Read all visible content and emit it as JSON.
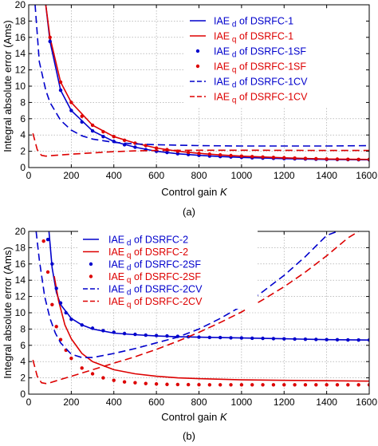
{
  "chart_data": [
    {
      "type": "line",
      "caption": "(a)",
      "xlabel": "Control gain K",
      "ylabel": "Integral absolute error (Ams)",
      "xlim": [
        0,
        1600
      ],
      "ylim": [
        0,
        20
      ],
      "xticks": [
        0,
        200,
        400,
        600,
        800,
        1000,
        1200,
        1400,
        1600
      ],
      "yticks": [
        0,
        2,
        4,
        6,
        8,
        10,
        12,
        14,
        16,
        18,
        20
      ],
      "grid": true,
      "legend_position": "top-right",
      "series": [
        {
          "name": "IAE_d of DSRFC-1",
          "label_main": "IAE",
          "label_sub": "d",
          "label_rest": " of DSRFC-1",
          "color": "#0000cc",
          "style": "solid",
          "x": [
            80,
            100,
            150,
            200,
            300,
            400,
            500,
            600,
            700,
            800,
            900,
            1000,
            1200,
            1400,
            1600
          ],
          "y": [
            20,
            15.5,
            9.5,
            7.0,
            4.5,
            3.2,
            2.5,
            2.0,
            1.7,
            1.5,
            1.35,
            1.25,
            1.1,
            1.0,
            0.95
          ]
        },
        {
          "name": "IAE_q of DSRFC-1",
          "label_main": "IAE",
          "label_sub": "q",
          "label_rest": " of DSRFC-1",
          "color": "#dd0000",
          "style": "solid",
          "x": [
            80,
            100,
            150,
            200,
            300,
            400,
            500,
            600,
            700,
            800,
            900,
            1000,
            1200,
            1400,
            1600
          ],
          "y": [
            20,
            16.0,
            10.5,
            8.0,
            5.2,
            3.8,
            3.0,
            2.4,
            2.0,
            1.75,
            1.55,
            1.4,
            1.2,
            1.05,
            1.0
          ]
        },
        {
          "name": "IAE_d of DSRFC-1SF",
          "label_main": "IAE",
          "label_sub": "d",
          "label_rest": " of DSRFC-1SF",
          "color": "#0000cc",
          "style": "dots",
          "x": [
            100,
            150,
            200,
            250,
            300,
            350,
            400,
            450,
            500,
            550,
            600,
            650,
            700,
            750,
            800,
            850,
            900,
            950,
            1000,
            1050,
            1100,
            1150,
            1200,
            1250,
            1300,
            1350,
            1400,
            1450,
            1500,
            1550,
            1600
          ],
          "y": [
            15.5,
            9.5,
            7.0,
            5.6,
            4.5,
            3.8,
            3.2,
            2.8,
            2.5,
            2.2,
            2.0,
            1.85,
            1.7,
            1.6,
            1.5,
            1.42,
            1.35,
            1.3,
            1.25,
            1.2,
            1.16,
            1.13,
            1.1,
            1.07,
            1.05,
            1.02,
            1.0,
            0.98,
            0.97,
            0.96,
            0.95
          ]
        },
        {
          "name": "IAE_q of DSRFC-1SF",
          "label_main": "IAE",
          "label_sub": "q",
          "label_rest": " of DSRFC-1SF",
          "color": "#dd0000",
          "style": "dots",
          "x": [
            100,
            150,
            200,
            250,
            300,
            350,
            400,
            450,
            500,
            550,
            600,
            650,
            700,
            750,
            800,
            850,
            900,
            950,
            1000,
            1050,
            1100,
            1150,
            1200,
            1250,
            1300,
            1350,
            1400,
            1450,
            1500,
            1550,
            1600
          ],
          "y": [
            16.0,
            10.5,
            8.0,
            6.3,
            5.2,
            4.4,
            3.8,
            3.35,
            3.0,
            2.7,
            2.4,
            2.2,
            2.0,
            1.87,
            1.75,
            1.65,
            1.55,
            1.47,
            1.4,
            1.34,
            1.29,
            1.24,
            1.2,
            1.16,
            1.12,
            1.08,
            1.05,
            1.03,
            1.01,
            1.0,
            1.0
          ]
        },
        {
          "name": "IAE_d of DSRFC-1CV",
          "label_main": "IAE",
          "label_sub": "d",
          "label_rest": " of DSRFC-1CV",
          "color": "#0000cc",
          "style": "dashed",
          "x": [
            30,
            50,
            80,
            100,
            150,
            200,
            250,
            300,
            400,
            500,
            600,
            800,
            1000,
            1200,
            1400,
            1600
          ],
          "y": [
            20,
            13.0,
            9.5,
            8.0,
            5.8,
            4.6,
            3.9,
            3.5,
            3.1,
            2.9,
            2.8,
            2.7,
            2.65,
            2.65,
            2.65,
            2.7
          ]
        },
        {
          "name": "IAE_q of DSRFC-1CV",
          "label_main": "IAE",
          "label_sub": "q",
          "label_rest": " of DSRFC-1CV",
          "color": "#dd0000",
          "style": "dashed",
          "x": [
            20,
            40,
            60,
            80,
            100,
            150,
            200,
            300,
            400,
            500,
            600,
            700,
            800,
            1000,
            1200,
            1400,
            1600
          ],
          "y": [
            4.2,
            2.2,
            1.5,
            1.4,
            1.45,
            1.55,
            1.65,
            1.8,
            1.95,
            2.05,
            2.1,
            2.12,
            2.13,
            2.13,
            2.12,
            2.1,
            2.1
          ]
        }
      ]
    },
    {
      "type": "line",
      "caption": "(b)",
      "xlabel": "Control gain K",
      "ylabel": "Integral absolute error (Ams)",
      "xlim": [
        0,
        1600
      ],
      "ylim": [
        0,
        20
      ],
      "xticks": [
        0,
        200,
        400,
        600,
        800,
        1000,
        1200,
        1400,
        1600
      ],
      "yticks": [
        0,
        2,
        4,
        6,
        8,
        10,
        12,
        14,
        16,
        18,
        20
      ],
      "grid": true,
      "legend_position": "top-left",
      "series": [
        {
          "name": "IAE_d of DSRFC-2",
          "label_main": "IAE",
          "label_sub": "d",
          "label_rest": " of DSRFC-2",
          "color": "#0000cc",
          "style": "solid",
          "x": [
            95,
            110,
            130,
            150,
            200,
            250,
            300,
            400,
            500,
            600,
            700,
            800,
            1000,
            1200,
            1400,
            1600
          ],
          "y": [
            20,
            15.5,
            12.5,
            11.0,
            9.3,
            8.5,
            8.0,
            7.5,
            7.3,
            7.15,
            7.05,
            7.0,
            6.9,
            6.8,
            6.7,
            6.65
          ]
        },
        {
          "name": "IAE_q of DSRFC-2",
          "label_main": "IAE",
          "label_sub": "q",
          "label_rest": " of DSRFC-2",
          "color": "#dd0000",
          "style": "solid",
          "x": [
            120,
            140,
            170,
            200,
            250,
            300,
            400,
            500,
            600,
            700,
            800,
            1000,
            1200,
            1400,
            1600
          ],
          "y": [
            14.5,
            11.5,
            8.5,
            6.8,
            5.0,
            4.0,
            3.0,
            2.5,
            2.2,
            2.0,
            1.9,
            1.75,
            1.7,
            1.65,
            1.6
          ]
        },
        {
          "name": "IAE_d of DSRFC-2SF",
          "label_main": "IAE",
          "label_sub": "d",
          "label_rest": " of DSRFC-2SF",
          "color": "#0000cc",
          "style": "dots",
          "x": [
            90,
            110,
            130,
            150,
            175,
            200,
            250,
            300,
            350,
            400,
            450,
            500,
            550,
            600,
            650,
            700,
            750,
            800,
            850,
            900,
            950,
            1000,
            1050,
            1100,
            1150,
            1200,
            1250,
            1300,
            1350,
            1400,
            1450,
            1500,
            1550,
            1600
          ],
          "y": [
            19.0,
            16.0,
            13.0,
            11.2,
            10.0,
            9.2,
            8.5,
            8.1,
            7.8,
            7.6,
            7.45,
            7.35,
            7.25,
            7.2,
            7.15,
            7.1,
            7.05,
            7.0,
            6.97,
            6.95,
            6.92,
            6.9,
            6.87,
            6.85,
            6.82,
            6.8,
            6.77,
            6.75,
            6.72,
            6.7,
            6.68,
            6.66,
            6.65,
            6.65
          ]
        },
        {
          "name": "IAE_q of DSRFC-2SF",
          "label_main": "IAE",
          "label_sub": "q",
          "label_rest": " of DSRFC-2SF",
          "color": "#dd0000",
          "style": "dots",
          "x": [
            70,
            90,
            110,
            130,
            150,
            175,
            200,
            250,
            300,
            350,
            400,
            450,
            500,
            550,
            600,
            650,
            700,
            750,
            800,
            850,
            900,
            950,
            1000,
            1050,
            1100,
            1150,
            1200,
            1250,
            1300,
            1350,
            1400,
            1450,
            1500,
            1550,
            1600
          ],
          "y": [
            18.8,
            15.0,
            11.0,
            8.3,
            6.7,
            5.4,
            4.4,
            3.2,
            2.5,
            2.0,
            1.7,
            1.5,
            1.4,
            1.3,
            1.25,
            1.2,
            1.18,
            1.17,
            1.16,
            1.15,
            1.15,
            1.15,
            1.15,
            1.15,
            1.15,
            1.15,
            1.15,
            1.15,
            1.15,
            1.15,
            1.15,
            1.15,
            1.15,
            1.15,
            1.15
          ]
        },
        {
          "name": "IAE_d of DSRFC-2CV",
          "label_main": "IAE",
          "label_sub": "d",
          "label_rest": " of DSRFC-2CV",
          "color": "#0000cc",
          "style": "dashed",
          "x": [
            35,
            50,
            75,
            100,
            125,
            150,
            200,
            250,
            300,
            400,
            500,
            600,
            700,
            800,
            900,
            1000,
            1100,
            1200,
            1300,
            1400,
            1450
          ],
          "y": [
            20,
            16.5,
            12.0,
            9.3,
            7.5,
            6.3,
            4.9,
            4.5,
            4.5,
            5.0,
            5.6,
            6.3,
            7.0,
            8.0,
            9.3,
            10.8,
            12.6,
            14.6,
            16.9,
            19.5,
            20.0
          ]
        },
        {
          "name": "IAE_q of DSRFC-2CV",
          "label_main": "IAE",
          "label_sub": "q",
          "label_rest": " of DSRFC-2CV",
          "color": "#dd0000",
          "style": "dashed",
          "x": [
            20,
            40,
            60,
            80,
            100,
            150,
            200,
            300,
            400,
            500,
            600,
            700,
            800,
            900,
            1000,
            1100,
            1200,
            1300,
            1400,
            1500,
            1550
          ],
          "y": [
            4.2,
            2.2,
            1.4,
            1.3,
            1.4,
            1.8,
            2.2,
            3.0,
            3.8,
            4.6,
            5.5,
            6.5,
            7.6,
            8.8,
            10.1,
            11.6,
            13.2,
            15.0,
            17.0,
            19.2,
            20.0
          ]
        }
      ]
    }
  ]
}
